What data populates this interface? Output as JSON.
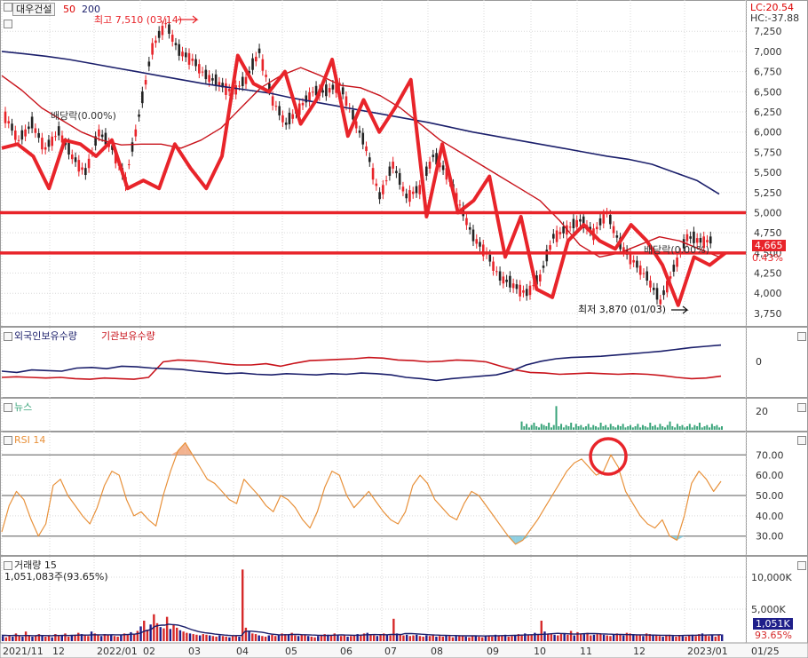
{
  "colors": {
    "bg": "#ffffff",
    "grid": "#d9d9d9",
    "red": "#e8242a",
    "navy": "#1b1f6b",
    "maroon": "#c8131b",
    "orange": "#e8913a",
    "green": "#3aa47a",
    "volBlue": "#1f1f8a",
    "volRed": "#d62a2a",
    "hiLabel": "#e8242a"
  },
  "header": {
    "stock_name": "대우건설",
    "ma_short": "50",
    "ma_long": "200",
    "lc": "LC:20.54",
    "hc": "HC:-37.88"
  },
  "annotations": {
    "high": "최고 7,510 (03/14)",
    "low": "최저 3,870 (01/03)",
    "dividend1": "배당락(0.00%)",
    "dividend2": "배당락(0.00%)",
    "price_badge": "4,665",
    "pct_badge": "0.43%"
  },
  "panels": {
    "holding": {
      "label_foreign": "외국인보유수량",
      "label_inst": "기관보유수량",
      "axis_zero": "0"
    },
    "news": {
      "label": "뉴스",
      "axis": "20"
    },
    "rsi": {
      "label": "RSI 14"
    },
    "volume": {
      "label": "거래량 15",
      "info": "1,051,083주(93.65%)",
      "badge_vol": "1,051K",
      "badge_pct": "93.65%"
    }
  },
  "chart_data": [
    {
      "type": "line",
      "title": "대우건설",
      "x_labels": [
        "2021/11",
        "12",
        "2022/01",
        "02",
        "03",
        "04",
        "05",
        "06",
        "07",
        "08",
        "09",
        "10",
        "11",
        "12",
        "2023/01",
        "01/25"
      ],
      "y_ticks": [
        3750,
        4000,
        4250,
        4500,
        4750,
        5000,
        5250,
        5500,
        5750,
        6000,
        6250,
        6500,
        6750,
        7000,
        7250
      ],
      "ylim": [
        3650,
        7550
      ],
      "series": [
        {
          "name": "200",
          "values": [
            7000,
            6970,
            6940,
            6900,
            6850,
            6800,
            6750,
            6700,
            6650,
            6600,
            6560,
            6520,
            6480,
            6420,
            6370,
            6320,
            6270,
            6220,
            6170,
            6120,
            6060,
            6000,
            5950,
            5900,
            5850,
            5800,
            5750,
            5700,
            5660,
            5600,
            5500,
            5400,
            5230
          ]
        },
        {
          "name": "50",
          "values": [
            6700,
            6520,
            6300,
            6150,
            6000,
            5900,
            5840,
            5850,
            5850,
            5800,
            5900,
            6050,
            6300,
            6550,
            6700,
            6800,
            6700,
            6580,
            6550,
            6450,
            6300,
            6100,
            5900,
            5750,
            5600,
            5450,
            5300,
            5150,
            4900,
            4600,
            4450,
            4500,
            4600,
            4700,
            4650,
            4550,
            4450
          ]
        },
        {
          "name": "close",
          "values": [
            6200,
            5900,
            6100,
            5800,
            6000,
            5700,
            5500,
            6000,
            5800,
            5400,
            6200,
            7050,
            7350,
            7000,
            6900,
            6700,
            6600,
            6500,
            6650,
            7000,
            6400,
            6100,
            6300,
            6500,
            6500,
            6600,
            6200,
            5800,
            5200,
            5600,
            5200,
            5300,
            5700,
            5500,
            5100,
            4700,
            4500,
            4200,
            4100,
            4000,
            4200,
            4700,
            4800,
            4900,
            4750,
            5000,
            4600,
            4400,
            4200,
            3900,
            4300,
            4700,
            4650
          ]
        },
        {
          "name": "trend",
          "values": [
            5800,
            5850,
            5700,
            5300,
            5900,
            5850,
            5700,
            5900,
            5300,
            5400,
            5300,
            5850,
            5550,
            5300,
            5700,
            6950,
            6600,
            6500,
            6750,
            6100,
            6400,
            6900,
            5950,
            6400,
            6000,
            6300,
            6650,
            4950,
            5850,
            5000,
            5150,
            5450,
            4450,
            4950,
            4050,
            3950,
            4650,
            4850,
            4650,
            4550,
            4850,
            4650,
            4350,
            3850,
            4450,
            4350,
            4500
          ]
        }
      ],
      "high": {
        "label": "최고 7,510 (03/14)",
        "value": 7510
      },
      "low": {
        "label": "최저 3,870 (01/03)",
        "value": 3870
      },
      "horizontal_lines": [
        5000,
        4500
      ]
    },
    {
      "type": "line",
      "title": "외국인보유수량 / 기관보유수량",
      "series": [
        {
          "name": "외국인보유수량",
          "values": [
            40,
            38,
            42,
            41,
            40,
            45,
            46,
            44,
            48,
            47,
            45,
            44,
            43,
            40,
            38,
            36,
            37,
            35,
            34,
            36,
            35,
            34,
            36,
            35,
            37,
            36,
            34,
            30,
            28,
            25,
            28,
            30,
            32,
            34,
            40,
            50,
            56,
            60,
            62,
            63,
            64,
            66,
            68,
            70,
            72,
            75,
            78,
            80,
            82
          ]
        },
        {
          "name": "기관보유수량",
          "values": [
            30,
            31,
            30,
            29,
            30,
            28,
            27,
            29,
            28,
            27,
            30,
            55,
            58,
            57,
            55,
            52,
            50,
            50,
            52,
            48,
            53,
            57,
            58,
            59,
            60,
            62,
            61,
            58,
            57,
            55,
            56,
            58,
            57,
            55,
            48,
            42,
            38,
            37,
            35,
            36,
            37,
            36,
            35,
            36,
            35,
            33,
            30,
            28,
            29,
            32
          ]
        }
      ]
    },
    {
      "type": "bar",
      "title": "뉴스",
      "values": [
        0,
        0,
        0,
        0,
        0,
        0,
        0,
        0,
        0,
        0,
        0,
        0,
        0,
        0,
        0,
        0,
        0,
        0,
        0,
        0,
        0,
        0,
        0,
        0,
        0,
        0,
        0,
        0,
        0,
        0,
        0,
        0,
        0,
        0,
        0,
        0,
        0,
        0,
        0,
        0,
        0,
        0,
        0,
        0,
        0,
        0,
        0,
        0,
        0,
        0,
        0,
        0,
        0,
        0,
        0,
        0,
        0,
        0,
        0,
        0,
        0,
        0,
        0,
        0,
        0,
        0,
        0,
        0,
        0,
        0,
        0,
        0,
        0,
        0,
        0,
        0,
        0,
        0,
        0,
        0,
        0,
        0,
        0,
        0,
        0,
        0,
        0,
        0,
        0,
        0,
        0,
        0,
        0,
        0,
        0,
        0,
        0,
        0,
        0,
        0,
        0,
        0,
        0,
        0,
        0,
        0,
        0,
        0,
        0,
        0,
        0,
        0,
        0,
        0,
        0,
        0,
        0,
        0,
        0,
        0,
        0,
        0,
        0,
        0,
        0,
        0,
        0,
        0,
        0,
        0,
        0,
        0,
        0,
        0,
        0,
        0,
        0,
        0,
        0,
        0,
        0,
        0,
        0,
        0,
        0,
        0,
        0,
        0,
        0,
        0,
        0,
        0,
        0,
        0,
        0,
        0,
        0,
        0,
        0,
        0,
        0,
        0,
        0,
        0,
        0,
        0,
        0,
        0,
        0,
        0,
        0,
        0,
        0,
        0,
        0,
        0,
        0,
        0,
        0,
        0,
        0,
        0,
        0,
        0,
        0,
        0,
        0,
        0,
        0,
        0,
        0,
        0,
        0,
        0,
        0,
        0,
        0,
        0,
        0,
        0,
        0,
        0,
        0,
        0,
        0,
        0,
        0,
        0,
        0,
        0,
        7,
        3,
        5,
        2,
        4,
        6,
        3,
        2,
        5,
        4,
        3,
        6,
        2,
        4,
        20,
        3,
        5,
        2,
        4,
        3,
        6,
        2,
        5,
        3,
        4,
        2,
        3,
        5,
        2,
        4,
        3,
        2,
        6,
        3,
        4,
        2,
        5,
        3,
        2,
        4,
        3,
        5,
        2,
        3,
        4,
        2,
        3,
        5,
        2,
        4,
        3,
        2,
        6,
        3,
        4,
        2,
        5,
        3,
        2,
        4,
        7,
        3,
        2,
        5,
        3,
        4,
        2,
        3,
        5,
        2,
        4,
        3,
        6,
        2,
        3,
        4,
        2,
        5,
        3,
        4,
        2,
        3
      ],
      "ylim": [
        0,
        24
      ]
    },
    {
      "type": "line",
      "title": "RSI 14",
      "y_ticks": [
        30,
        40,
        50,
        60,
        70
      ],
      "ylim": [
        22,
        78
      ],
      "series": [
        {
          "name": "RSI 14",
          "values": [
            32,
            45,
            52,
            48,
            38,
            30,
            36,
            55,
            58,
            50,
            45,
            40,
            36,
            44,
            55,
            62,
            60,
            48,
            40,
            42,
            38,
            35,
            50,
            62,
            72,
            76,
            70,
            64,
            58,
            56,
            52,
            48,
            46,
            58,
            54,
            50,
            45,
            42,
            50,
            48,
            44,
            38,
            34,
            42,
            54,
            62,
            60,
            50,
            44,
            48,
            52,
            47,
            42,
            38,
            36,
            42,
            55,
            60,
            56,
            48,
            44,
            40,
            38,
            46,
            52,
            50,
            45,
            40,
            35,
            30,
            26,
            28,
            33,
            38,
            44,
            50,
            56,
            62,
            66,
            68,
            64,
            60,
            62,
            70,
            64,
            52,
            46,
            40,
            36,
            34,
            38,
            30,
            28,
            40,
            56,
            62,
            58,
            52,
            57
          ]
        }
      ],
      "circle_marker_index": 83
    },
    {
      "type": "bar",
      "title": "거래량 15",
      "y_ticks": [
        5000,
        10000
      ],
      "ylim": [
        0,
        12500
      ],
      "values": [
        800,
        600,
        900,
        700,
        1200,
        900,
        700,
        1500,
        900,
        700,
        800,
        1100,
        900,
        700,
        800,
        600,
        1100,
        800,
        900,
        1200,
        700,
        900,
        1000,
        1300,
        1100,
        900,
        800,
        1500,
        1200,
        900,
        800,
        1100,
        900,
        1000,
        800,
        700,
        900,
        1200,
        1000,
        1400,
        1100,
        1600,
        2300,
        3200,
        1800,
        2600,
        4200,
        2800,
        2200,
        2000,
        3800,
        1900,
        2500,
        2100,
        1700,
        1500,
        1300,
        1200,
        1100,
        1000,
        900,
        1100,
        1000,
        900,
        800,
        700,
        900,
        800,
        700,
        600,
        800,
        900,
        700,
        11200,
        2100,
        1500,
        1200,
        1100,
        900,
        800,
        700,
        900,
        1000,
        800,
        900,
        1200,
        1100,
        1000,
        1300,
        900,
        800,
        1000,
        900,
        800,
        700,
        600,
        800,
        900,
        1100,
        1000,
        900,
        1200,
        1000,
        800,
        900,
        700,
        800,
        900,
        1100,
        1000,
        1200,
        1300,
        1000,
        900,
        800,
        1100,
        1200,
        1000,
        900,
        3500,
        1200,
        1100,
        900,
        1000,
        800,
        900,
        1000,
        800,
        700,
        900,
        800,
        900,
        700,
        800,
        700,
        900,
        800,
        600,
        800,
        900,
        800,
        700,
        600,
        900,
        800,
        700,
        600,
        800,
        900,
        700,
        1000,
        800,
        900,
        1000,
        700,
        800,
        900,
        1100,
        1000,
        1200,
        900,
        1000,
        1300,
        1100,
        3200,
        1500,
        1200,
        1100,
        1000,
        900,
        1100,
        1200,
        1000,
        1600,
        900,
        1400,
        1200,
        1100,
        1300,
        900,
        1000,
        1100,
        1200,
        1000,
        900,
        800,
        1100,
        1200,
        1000,
        900,
        1300,
        1200,
        1100,
        900,
        1000,
        800,
        1200,
        1100,
        1000,
        900,
        800,
        700,
        900,
        1000,
        800,
        700,
        900,
        800,
        700,
        900,
        1000,
        800,
        1100,
        1200,
        900,
        800,
        1000,
        700,
        900,
        1051
      ],
      "ma_values": [
        900,
        900,
        880,
        870,
        900,
        880,
        860,
        880,
        870,
        860,
        850,
        900,
        880,
        870,
        860,
        850,
        900,
        880,
        890,
        900,
        880,
        900,
        920,
        950,
        960,
        950,
        940,
        980,
        1000,
        990,
        980,
        1000,
        990,
        1000,
        990,
        980,
        990,
        1020,
        1040,
        1080,
        1100,
        1180,
        1350,
        1600,
        1700,
        1900,
        2300,
        2450,
        2500,
        2500,
        2650,
        2600,
        2550,
        2500,
        2350,
        2200,
        2000,
        1800,
        1650,
        1500,
        1400,
        1300,
        1250,
        1200,
        1100,
        1050,
        1000,
        950,
        900,
        870,
        860,
        880,
        870,
        1500,
        1550,
        1550,
        1500,
        1450,
        1400,
        1300,
        1200,
        1100,
        1050,
        1000,
        980,
        1000,
        1020,
        1040,
        1060,
        1040,
        1020,
        1000,
        980,
        960,
        940,
        920,
        900,
        890,
        900,
        920,
        940,
        960,
        980,
        960,
        940,
        930,
        920,
        930,
        950,
        980,
        1000,
        1020,
        1030,
        1020,
        1010,
        1000,
        1020,
        1040,
        1050,
        1040,
        1030,
        1180,
        1200,
        1180,
        1150,
        1120,
        1080,
        1050,
        1020,
        990,
        960,
        940,
        920,
        900,
        890,
        880,
        870,
        860,
        850,
        840,
        840,
        830,
        830,
        820,
        820,
        810,
        820,
        830,
        840,
        850,
        860,
        870,
        880,
        890,
        900,
        920,
        940,
        960,
        980,
        1000,
        1020,
        1040,
        1060,
        1080,
        1100,
        1150,
        1200,
        1220,
        1200,
        1180,
        1150,
        1120,
        1100,
        1120,
        1140,
        1160,
        1180,
        1200,
        1180,
        1160,
        1140,
        1120,
        1100,
        1080,
        1060,
        1050,
        1040,
        1030,
        1020,
        1010,
        1000,
        990,
        980,
        970,
        960,
        950,
        940,
        930,
        920,
        910,
        900,
        890,
        880,
        870,
        880,
        890,
        900,
        910,
        920,
        930,
        940,
        950,
        960,
        970,
        980,
        990,
        1000
      ]
    }
  ]
}
